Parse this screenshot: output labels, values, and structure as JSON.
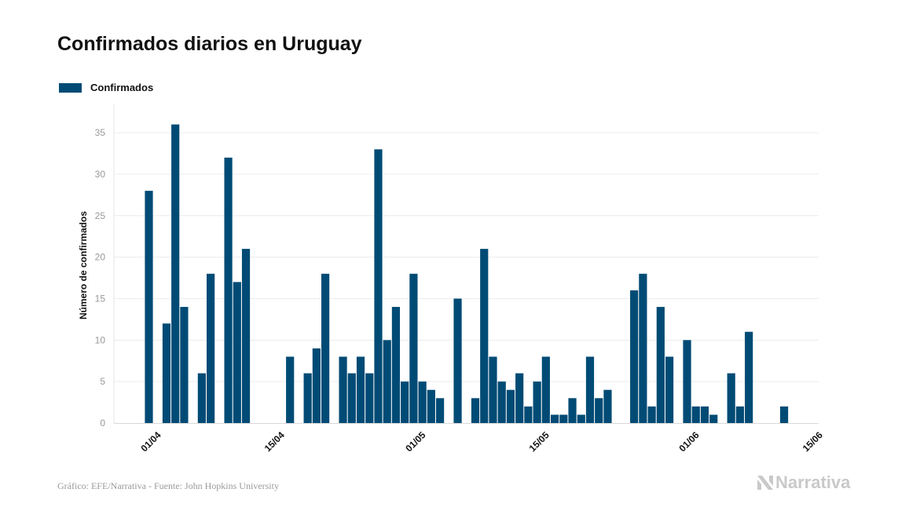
{
  "title": "Confirmados diarios en Uruguay",
  "legend": {
    "label": "Confirmados",
    "color": "#004b75"
  },
  "footer": "Gráfico: EFE/Narrativa - Fuente: John Hopkins University",
  "brand": "Narrativa",
  "chart_data": {
    "type": "bar",
    "title": "Confirmados diarios en Uruguay",
    "ylabel": "Número de confirmados",
    "xlabel": "",
    "ylim": [
      0,
      37
    ],
    "yticks": [
      0,
      5,
      10,
      15,
      20,
      25,
      30,
      35
    ],
    "xtick_labels": [
      {
        "label": "01/04",
        "day_index": 0
      },
      {
        "label": "15/04",
        "day_index": 14
      },
      {
        "label": "01/05",
        "day_index": 30
      },
      {
        "label": "15/05",
        "day_index": 44
      },
      {
        "label": "01/06",
        "day_index": 61
      },
      {
        "label": "15/06",
        "day_index": 75
      }
    ],
    "start_date": "01/04",
    "series": [
      {
        "name": "Confirmados",
        "values": [
          28,
          0,
          12,
          36,
          14,
          0,
          6,
          18,
          0,
          32,
          17,
          21,
          0,
          0,
          0,
          0,
          8,
          0,
          6,
          9,
          18,
          0,
          8,
          6,
          8,
          6,
          33,
          10,
          14,
          5,
          18,
          5,
          4,
          3,
          0,
          15,
          0,
          3,
          21,
          8,
          5,
          4,
          6,
          2,
          5,
          8,
          1,
          1,
          3,
          1,
          8,
          3,
          4,
          0,
          0,
          16,
          18,
          2,
          14,
          8,
          0,
          10,
          2,
          2,
          1,
          0,
          6,
          2,
          11,
          0,
          0,
          0,
          2,
          0
        ]
      }
    ]
  }
}
